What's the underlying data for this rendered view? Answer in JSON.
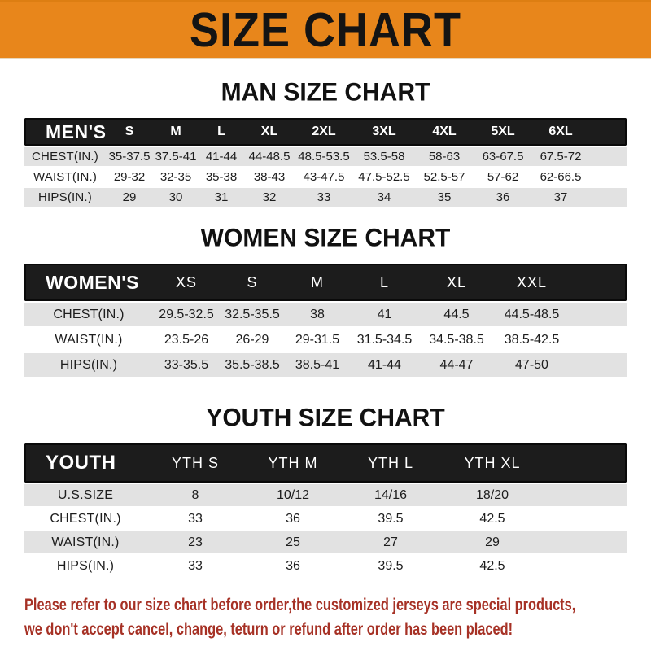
{
  "colors": {
    "banner_bg": "#E8861B",
    "table_header_bg": "#1C1C1C",
    "row_alt_bg": "#E2E2E2",
    "footer_text": "#A63125"
  },
  "banner": {
    "title": "SIZE CHART"
  },
  "sections": [
    {
      "heading": "MAN SIZE CHART",
      "table": {
        "name": "mens",
        "header": [
          "MEN'S",
          "S",
          "M",
          "L",
          "XL",
          "2XL",
          "3XL",
          "4XL",
          "5XL",
          "6XL"
        ],
        "rows": [
          {
            "label": "CHEST(IN.)",
            "values": [
              "35-37.5",
              "37.5-41",
              "41-44",
              "44-48.5",
              "48.5-53.5",
              "53.5-58",
              "58-63",
              "63-67.5",
              "67.5-72"
            ]
          },
          {
            "label": "WAIST(IN.)",
            "values": [
              "29-32",
              "32-35",
              "35-38",
              "38-43",
              "43-47.5",
              "47.5-52.5",
              "52.5-57",
              "57-62",
              "62-66.5"
            ]
          },
          {
            "label": "HIPS(IN.)",
            "values": [
              "29",
              "30",
              "31",
              "32",
              "33",
              "34",
              "35",
              "36",
              "37"
            ]
          }
        ]
      }
    },
    {
      "heading": "WOMEN SIZE CHART",
      "table": {
        "name": "womens",
        "header": [
          "WOMEN'S",
          "XS",
          "S",
          "M",
          "L",
          "XL",
          "XXL"
        ],
        "rows": [
          {
            "label": "CHEST(IN.)",
            "values": [
              "29.5-32.5",
              "32.5-35.5",
              "38",
              "41",
              "44.5",
              "44.5-48.5"
            ]
          },
          {
            "label": "WAIST(IN.)",
            "values": [
              "23.5-26",
              "26-29",
              "29-31.5",
              "31.5-34.5",
              "34.5-38.5",
              "38.5-42.5"
            ]
          },
          {
            "label": "HIPS(IN.)",
            "values": [
              "33-35.5",
              "35.5-38.5",
              "38.5-41",
              "41-44",
              "44-47",
              "47-50"
            ]
          }
        ]
      }
    },
    {
      "heading": "YOUTH SIZE CHART",
      "table": {
        "name": "youth",
        "header": [
          "YOUTH",
          "YTH S",
          "YTH M",
          "YTH L",
          "YTH XL"
        ],
        "rows": [
          {
            "label": "U.S.SIZE",
            "values": [
              "8",
              "10/12",
              "14/16",
              "18/20"
            ]
          },
          {
            "label": "CHEST(IN.)",
            "values": [
              "33",
              "36",
              "39.5",
              "42.5"
            ]
          },
          {
            "label": "WAIST(IN.)",
            "values": [
              "23",
              "25",
              "27",
              "29"
            ]
          },
          {
            "label": "HIPS(IN.)",
            "values": [
              "33",
              "36",
              "39.5",
              "42.5"
            ]
          }
        ]
      }
    }
  ],
  "footer": {
    "lines": [
      "Please refer to our size chart before order,the customized jerseys are special products,",
      "we don't accept cancel, change, teturn or refund after order has been placed!"
    ]
  }
}
